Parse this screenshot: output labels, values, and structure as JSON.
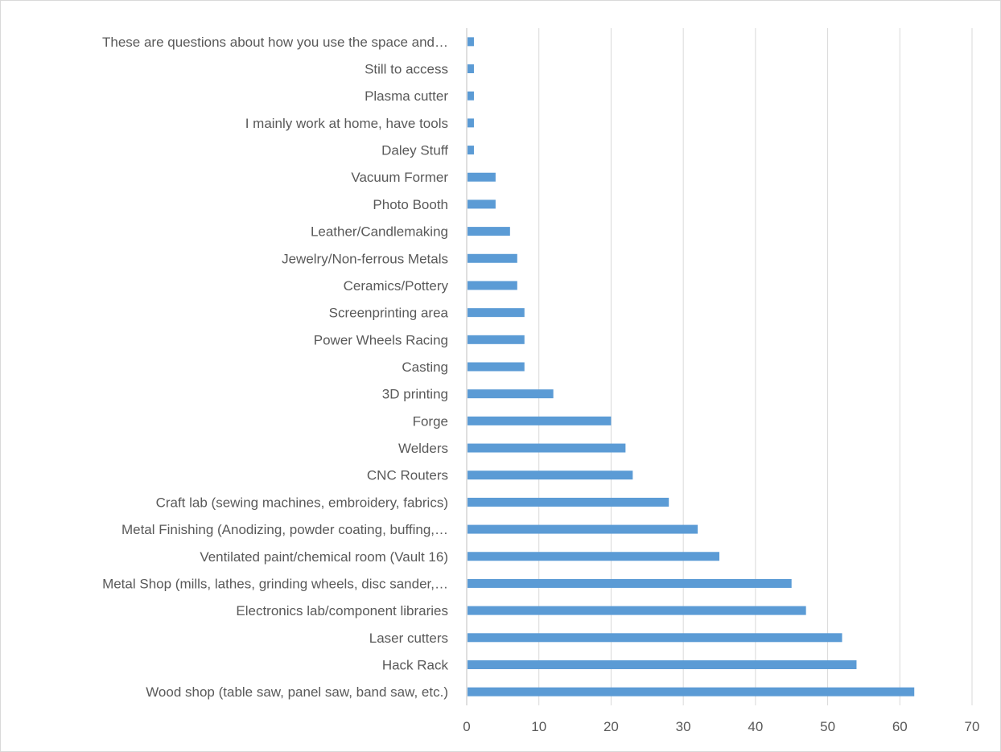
{
  "chart_data": {
    "type": "bar",
    "orientation": "horizontal",
    "categories": [
      "Wood shop (table saw, panel saw, band saw, etc.)",
      "Hack Rack",
      "Laser cutters",
      "Electronics lab/component libraries",
      "Metal Shop (mills, lathes, grinding wheels, disc sander,…",
      "Ventilated paint/chemical room (Vault 16)",
      "Metal Finishing (Anodizing, powder coating, buffing,…",
      "Craft lab (sewing machines, embroidery, fabrics)",
      "CNC Routers",
      "Welders",
      "Forge",
      "3D printing",
      "Casting",
      "Power Wheels Racing",
      "Screenprinting area",
      "Ceramics/Pottery",
      "Jewelry/Non-ferrous Metals",
      "Leather/Candlemaking",
      "Photo Booth",
      "Vacuum Former",
      "Daley Stuff",
      "I mainly work at home, have tools",
      "Plasma cutter",
      "Still to access",
      "These are questions about how you use the space and…"
    ],
    "values": [
      62,
      54,
      52,
      47,
      45,
      35,
      32,
      28,
      23,
      22,
      20,
      12,
      8,
      8,
      8,
      7,
      7,
      6,
      4,
      4,
      1,
      1,
      1,
      1,
      1
    ],
    "xlim": [
      0,
      70
    ],
    "xticks": [
      "0",
      "10",
      "20",
      "30",
      "40",
      "50",
      "60",
      "70"
    ],
    "grid": true,
    "bar_color": "#5b9bd5",
    "title": "",
    "xlabel": "",
    "ylabel": ""
  }
}
